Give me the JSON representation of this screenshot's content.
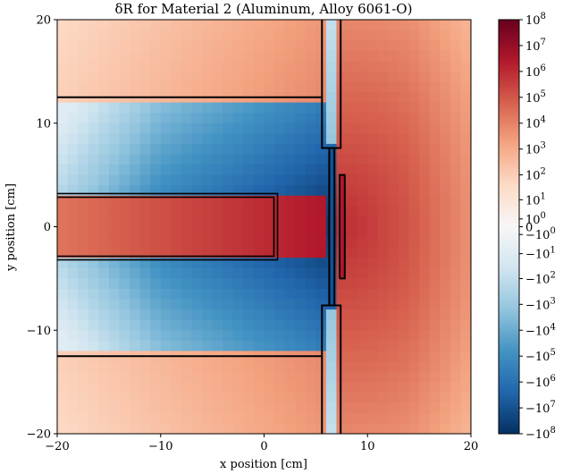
{
  "chart_data": {
    "type": "heatmap",
    "title": "δR for Material 2 (Aluminum, Alloy 6061-O)",
    "xlabel": "x position [cm]",
    "ylabel": "y position [cm]",
    "xlim": [
      -20,
      20
    ],
    "ylim": [
      -20,
      20
    ],
    "x_ticks": [
      -20,
      -10,
      0,
      10,
      20
    ],
    "x_tick_labels": [
      "−20",
      "−10",
      "0",
      "10",
      "20"
    ],
    "y_ticks": [
      -20,
      -10,
      0,
      10,
      20
    ],
    "y_tick_labels": [
      "−20",
      "−10",
      "0",
      "10",
      "20"
    ],
    "colormap": "RdBu_r",
    "color_scale": "symlog",
    "colorbar_range": [
      -100000000,
      100000000
    ],
    "colorbar_ticks": [
      {
        "value": 100000000,
        "label": "10",
        "exp": "8"
      },
      {
        "value": 10000000,
        "label": "10",
        "exp": "7"
      },
      {
        "value": 1000000,
        "label": "10",
        "exp": "6"
      },
      {
        "value": 100000,
        "label": "10",
        "exp": "5"
      },
      {
        "value": 10000,
        "label": "10",
        "exp": "4"
      },
      {
        "value": 1000,
        "label": "10",
        "exp": "3"
      },
      {
        "value": 100,
        "label": "10",
        "exp": "2"
      },
      {
        "value": 10,
        "label": "10",
        "exp": "1"
      },
      {
        "value": 1,
        "label": "10",
        "exp": "0"
      },
      {
        "value": 0,
        "label": "0",
        "exp": ""
      },
      {
        "value": -1,
        "label": "−10",
        "exp": "0"
      },
      {
        "value": -10,
        "label": "−10",
        "exp": "1"
      },
      {
        "value": -100,
        "label": "−10",
        "exp": "2"
      },
      {
        "value": -1000,
        "label": "−10",
        "exp": "3"
      },
      {
        "value": -10000,
        "label": "−10",
        "exp": "4"
      },
      {
        "value": -100000,
        "label": "−10",
        "exp": "5"
      },
      {
        "value": -1000000,
        "label": "−10",
        "exp": "6"
      },
      {
        "value": -10000000,
        "label": "−10",
        "exp": "7"
      },
      {
        "value": -100000000,
        "label": "−10",
        "exp": "8"
      }
    ],
    "grid_resolution": [
      40,
      40
    ],
    "regions": [
      {
        "name": "upper-slab",
        "x": [
          -20,
          5.6
        ],
        "y": [
          12.5,
          20
        ]
      },
      {
        "name": "lower-slab",
        "x": [
          -20,
          5.6
        ],
        "y": [
          -20,
          -12.5
        ]
      },
      {
        "name": "beam-pipe",
        "x": [
          -20,
          1.3
        ],
        "y": [
          -3.2,
          3.2
        ]
      },
      {
        "name": "upper-plate",
        "x": [
          5.6,
          7.4
        ],
        "y": [
          7.6,
          20
        ]
      },
      {
        "name": "lower-plate",
        "x": [
          5.6,
          7.4
        ],
        "y": [
          -20,
          -7.6
        ]
      },
      {
        "name": "thin-strip",
        "x": [
          6.3,
          6.8
        ],
        "y": [
          -7.6,
          7.6
        ]
      },
      {
        "name": "detector",
        "x": [
          7.3,
          7.8
        ],
        "y": [
          -5,
          5
        ]
      }
    ]
  }
}
